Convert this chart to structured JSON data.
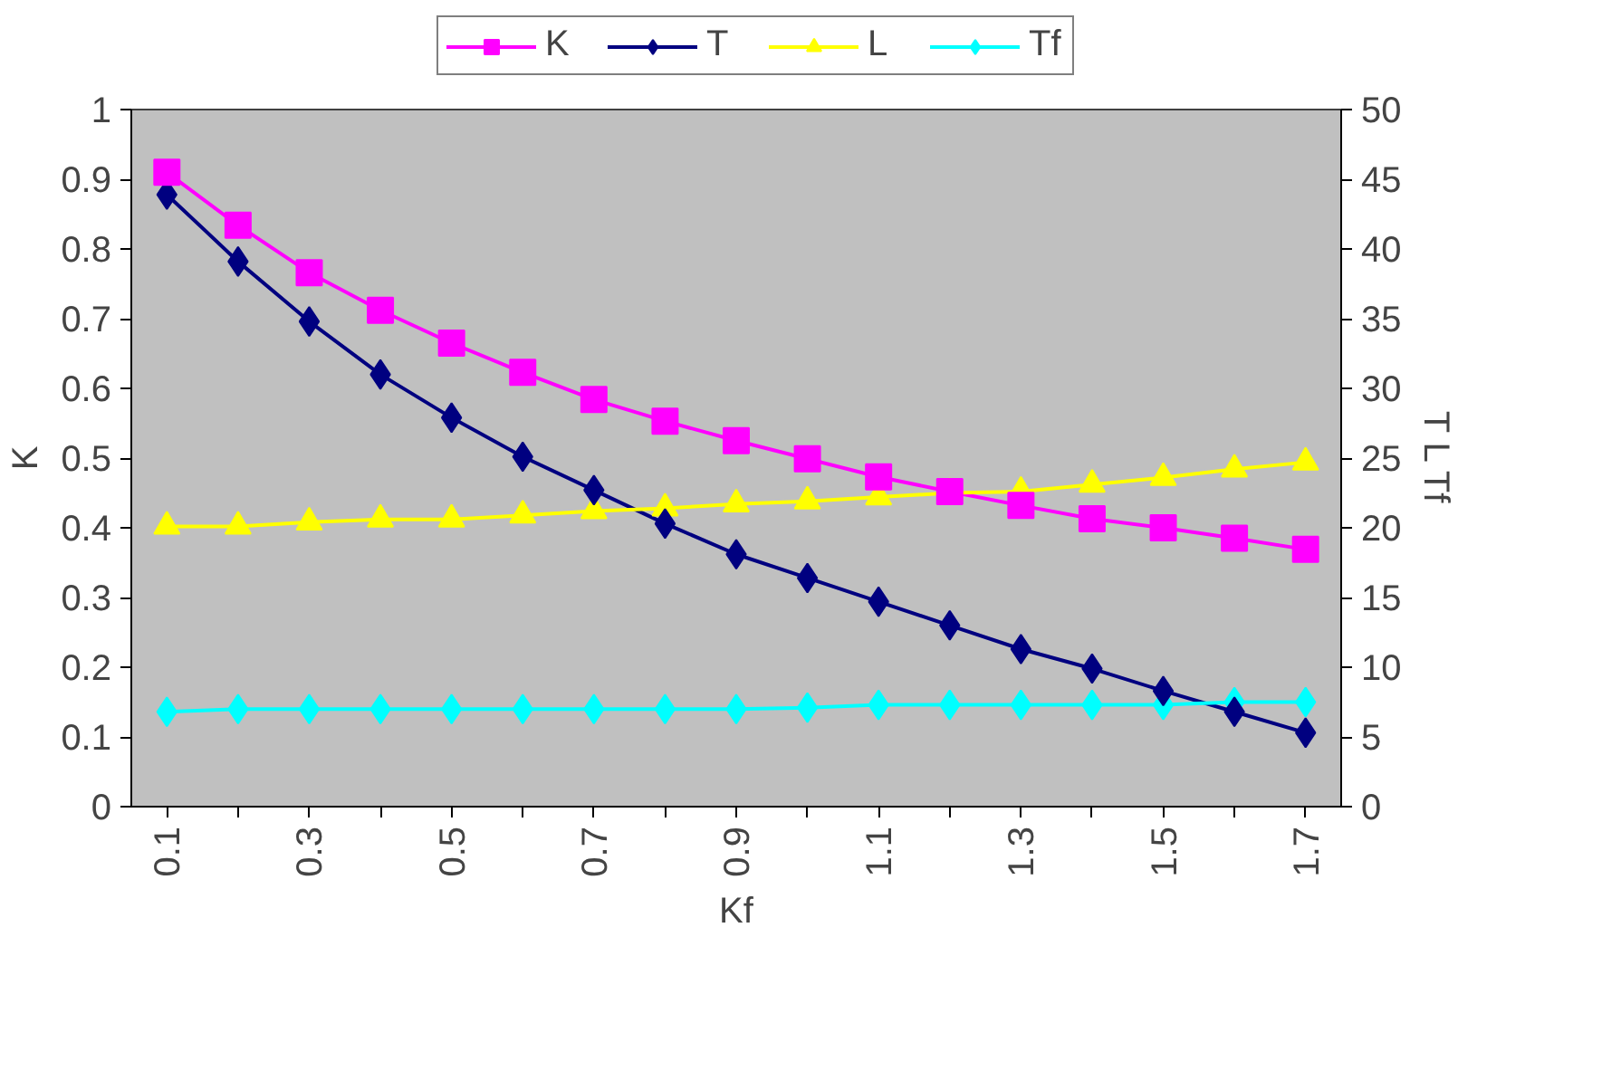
{
  "chart_data": {
    "type": "line",
    "xlabel": "Kf",
    "ylabel": "K",
    "y2label": "T L Tf",
    "categories": [
      "0.1",
      null,
      "0.3",
      null,
      "0.5",
      null,
      "0.7",
      null,
      "0.9",
      null,
      "1.1",
      null,
      "1.3",
      null,
      "1.5",
      null,
      "1.7"
    ],
    "ylim": [
      0,
      1
    ],
    "yticks": [
      0,
      0.1,
      0.2,
      0.3,
      0.4,
      0.5,
      0.6,
      0.7,
      0.8,
      0.9,
      1
    ],
    "y2lim": [
      0,
      50
    ],
    "y2ticks": [
      0,
      5,
      10,
      15,
      20,
      25,
      30,
      35,
      40,
      45,
      50
    ],
    "grid": false,
    "legend": "top",
    "series": [
      {
        "name": "K",
        "color": "#ff00ff",
        "marker": "square",
        "values": [
          0.91,
          0.834,
          0.766,
          0.712,
          0.665,
          0.623,
          0.584,
          0.553,
          0.525,
          0.499,
          0.473,
          0.452,
          0.432,
          0.413,
          0.4,
          0.385,
          0.369
        ]
      },
      {
        "name": "T",
        "color": "#000080",
        "marker": "diamond",
        "axis": "y2",
        "values": [
          43.9,
          39.1,
          34.8,
          31.0,
          27.9,
          25.1,
          22.7,
          20.3,
          18.1,
          16.4,
          14.7,
          13.0,
          11.3,
          9.9,
          8.3,
          6.8,
          5.3
        ]
      },
      {
        "name": "L",
        "color": "#ffff00",
        "marker": "triangle",
        "axis": "y2",
        "values": [
          20.1,
          20.1,
          20.4,
          20.6,
          20.6,
          20.9,
          21.2,
          21.4,
          21.7,
          21.9,
          22.2,
          22.5,
          22.6,
          23.1,
          23.6,
          24.2,
          24.7
        ]
      },
      {
        "name": "Tf",
        "color": "#00ffff",
        "marker": "diamond",
        "axis": "y2",
        "values": [
          6.8,
          7.0,
          7.0,
          7.0,
          7.0,
          7.0,
          7.0,
          7.0,
          7.0,
          7.1,
          7.3,
          7.3,
          7.3,
          7.3,
          7.3,
          7.5,
          7.5
        ]
      }
    ]
  }
}
